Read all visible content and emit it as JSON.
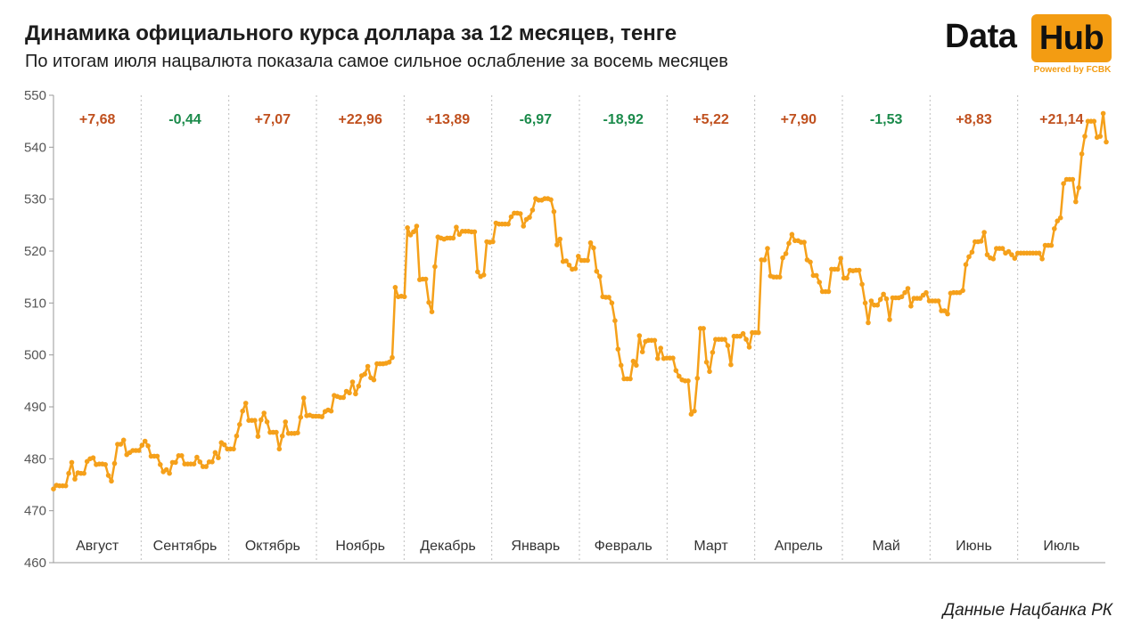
{
  "title": "Динамика официального курса доллара за 12 месяцев, тенге",
  "subtitle": "По итогам июля нацвалюта показала самое сильное ослабление за восемь месяцев",
  "logo": {
    "data": "Data",
    "hub": "Hub",
    "powered": "Powered by FCBK"
  },
  "source": "Данные Нацбанка РК",
  "colors": {
    "line": "#f5a01a",
    "positive": "#c0501e",
    "negative": "#1a8a4a",
    "grid": "#bdbdbd",
    "axis": "#999999"
  },
  "chart_data": {
    "type": "line",
    "title": "Динамика официального курса доллара за 12 месяцев, тенге",
    "ylim": [
      460,
      550
    ],
    "yticks": [
      460,
      470,
      480,
      490,
      500,
      510,
      520,
      530,
      540,
      550
    ],
    "grid": "vertical dotted month separators",
    "months": [
      "Август",
      "Сентябрь",
      "Октябрь",
      "Ноябрь",
      "Декабрь",
      "Январь",
      "Февраль",
      "Март",
      "Апрель",
      "Май",
      "Июнь",
      "Июль"
    ],
    "changes": [
      "+7,68",
      "-0,44",
      "+7,07",
      "+22,96",
      "+13,89",
      "-6,97",
      "-18,92",
      "+5,22",
      "+7,90",
      "-1,53",
      "+8,83",
      "+21,14"
    ],
    "series": [
      {
        "values": [
          474.2,
          474.9,
          474.8,
          474.8,
          474.8,
          477.2,
          479.3,
          476.1,
          477.3,
          477.2,
          477.2,
          479.5,
          480.0,
          480.2,
          478.9,
          479.0,
          479.0,
          478.9,
          476.8,
          475.7,
          479.1,
          482.8,
          482.8,
          483.6,
          480.8,
          481.2,
          481.6,
          481.6,
          481.6,
          482.6,
          483.4,
          482.5,
          480.5,
          480.5,
          480.5,
          478.9,
          477.5,
          477.9,
          477.2,
          479.3,
          479.3,
          480.6,
          480.6,
          479.0,
          479.0,
          479.0,
          479.0,
          480.3,
          479.4,
          478.5,
          478.5,
          479.4,
          479.4,
          481.2,
          480.2,
          483.1,
          482.7,
          481.9,
          481.9,
          481.9,
          484.4,
          486.6,
          489.2,
          490.7,
          487.4,
          487.4,
          487.4,
          484.3,
          487.5,
          488.8,
          487.1,
          485.1,
          485.1,
          485.1,
          481.9,
          484.4,
          487.1,
          484.9,
          484.9,
          484.9,
          485.0,
          488.0,
          491.7,
          488.3,
          488.4,
          488.2,
          488.2,
          488.2,
          488.1,
          489.1,
          489.4,
          489.2,
          492.2,
          492.0,
          491.8,
          491.8,
          493.0,
          492.7,
          494.8,
          492.5,
          494.0,
          496.0,
          496.3,
          497.8,
          495.6,
          495.2,
          498.3,
          498.3,
          498.3,
          498.4,
          498.6,
          499.5,
          513.0,
          511.2,
          511.3,
          511.2,
          524.5,
          523.1,
          523.7,
          524.8,
          514.5,
          514.6,
          514.6,
          510.1,
          508.3,
          517.0,
          522.7,
          522.5,
          522.3,
          522.5,
          522.5,
          522.5,
          524.6,
          523.2,
          523.8,
          523.8,
          523.8,
          523.7,
          523.7,
          516.0,
          515.1,
          515.4,
          521.8,
          521.7,
          521.8,
          525.4,
          525.2,
          525.2,
          525.2,
          525.2,
          526.6,
          527.3,
          527.3,
          527.2,
          524.8,
          526.1,
          526.5,
          527.9,
          530.1,
          529.8,
          529.8,
          530.1,
          530.1,
          529.9,
          527.6,
          521.2,
          522.3,
          518.0,
          518.1,
          517.3,
          516.5,
          516.6,
          519.0,
          518.2,
          518.2,
          518.2,
          521.6,
          520.6,
          516.1,
          515.1,
          511.2,
          511.1,
          511.1,
          510.0,
          506.6,
          501.1,
          498.0,
          495.4,
          495.4,
          495.4,
          498.8,
          498.0,
          503.7,
          500.6,
          502.6,
          502.8,
          502.8,
          502.8,
          499.3,
          501.3,
          499.3,
          499.4,
          499.4,
          499.4,
          497.0,
          495.9,
          495.2,
          495.0,
          495.0,
          488.6,
          489.2,
          495.5,
          505.1,
          505.1,
          498.6,
          496.8,
          500.5,
          503.0,
          503.0,
          503.0,
          503.0,
          501.8,
          498.1,
          503.6,
          503.6,
          503.6,
          504.1,
          503.0,
          501.5,
          504.3,
          504.3,
          504.3,
          518.3,
          518.3,
          520.5,
          515.2,
          515.0,
          515.0,
          515.0,
          518.7,
          519.5,
          521.5,
          523.2,
          522.0,
          522.0,
          521.7,
          521.7,
          518.3,
          517.9,
          515.3,
          515.3,
          514.0,
          512.2,
          512.2,
          512.2,
          516.5,
          516.5,
          516.5,
          518.6,
          514.8,
          514.8,
          516.3,
          516.2,
          516.3,
          516.3,
          513.6,
          510.0,
          506.2,
          510.4,
          509.6,
          509.6,
          510.7,
          511.7,
          510.8,
          506.8,
          511.0,
          511.0,
          511.0,
          511.2,
          512.0,
          512.8,
          509.4,
          510.9,
          510.9,
          510.9,
          511.5,
          512.0,
          510.4,
          510.4,
          510.4,
          510.4,
          508.5,
          508.5,
          507.9,
          511.9,
          512.0,
          512.0,
          512.0,
          512.4,
          517.4,
          518.9,
          519.8,
          521.8,
          521.8,
          521.9,
          523.6,
          519.3,
          518.7,
          518.5,
          520.5,
          520.5,
          520.5,
          519.6,
          519.9,
          519.3,
          518.6,
          519.6,
          519.6,
          519.6,
          519.6,
          519.6,
          519.6,
          519.6,
          519.6,
          518.5,
          521.1,
          521.1,
          521.1,
          524.3,
          525.8,
          526.4,
          533.0,
          533.8,
          533.8,
          533.8,
          529.5,
          532.2,
          538.7,
          542.1,
          545.0,
          545.0,
          545.0,
          541.9,
          542.1,
          546.5,
          541.0
        ]
      }
    ]
  }
}
